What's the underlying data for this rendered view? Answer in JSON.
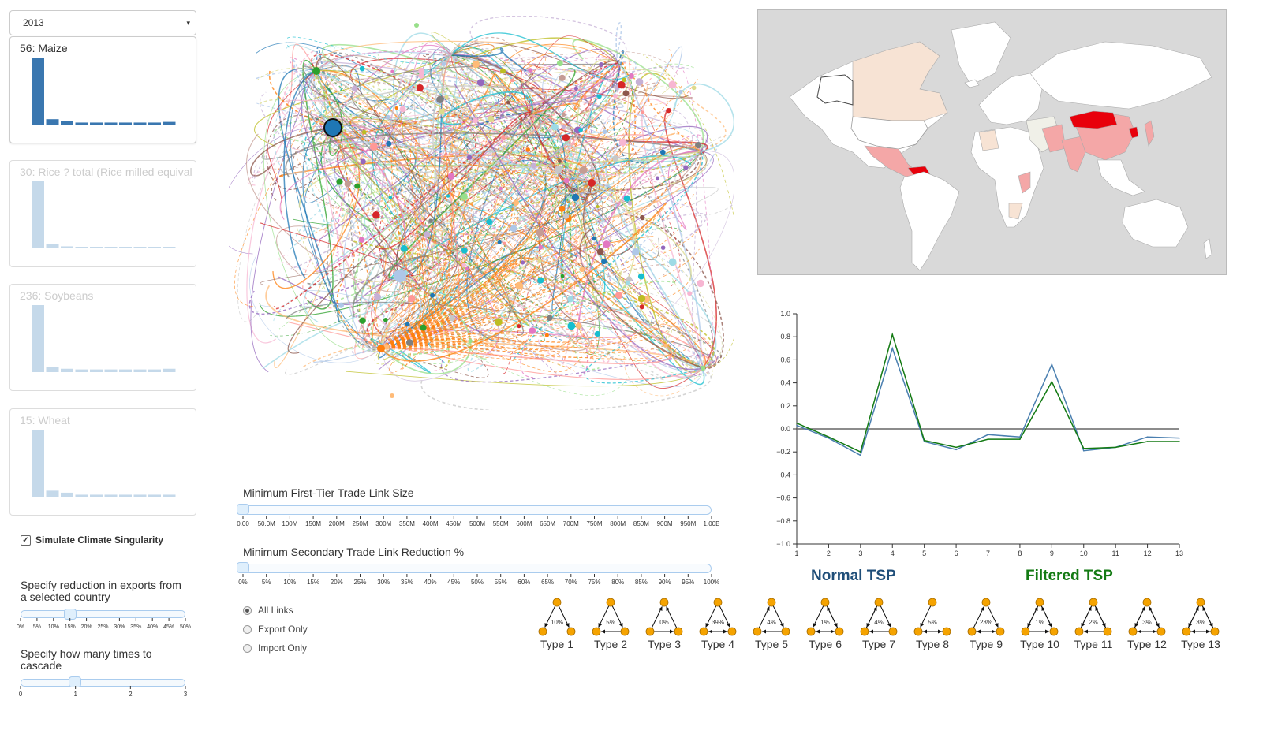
{
  "year_select": {
    "value": "2013",
    "caret": "▾"
  },
  "crops": [
    {
      "label": "56: Maize",
      "active": true,
      "bars": [
        1.0,
        0.08,
        0.05,
        0.03,
        0.03,
        0.03,
        0.03,
        0.03,
        0.03,
        0.04
      ]
    },
    {
      "label": "30: Rice ? total (Rice milled equival",
      "active": false,
      "bars": [
        1.0,
        0.06,
        0.03,
        0.02,
        0.02,
        0.02,
        0.02,
        0.02,
        0.02,
        0.02
      ]
    },
    {
      "label": "236: Soybeans",
      "active": false,
      "bars": [
        1.0,
        0.08,
        0.05,
        0.04,
        0.04,
        0.04,
        0.04,
        0.04,
        0.04,
        0.05
      ]
    },
    {
      "label": "15: Wheat",
      "active": false,
      "bars": [
        1.0,
        0.09,
        0.06,
        0.03,
        0.03,
        0.03,
        0.03,
        0.03,
        0.03,
        0.03
      ]
    }
  ],
  "simulate": {
    "label": "Simulate Climate Singularity",
    "checked": true,
    "check_glyph": "✓"
  },
  "reduction": {
    "label": "Specify reduction in exports from a selected country",
    "ticks": [
      "0%",
      "5%",
      "10%",
      "15%",
      "20%",
      "25%",
      "30%",
      "35%",
      "40%",
      "45%",
      "50%"
    ],
    "value_fraction": 0.3
  },
  "cascade": {
    "label": "Specify how many times to cascade",
    "ticks": [
      "0",
      "1",
      "2",
      "3"
    ],
    "value_fraction": 0.33
  },
  "first_tier": {
    "label": "Minimum First-Tier Trade Link Size",
    "ticks": [
      "0.00",
      "50.0M",
      "100M",
      "150M",
      "200M",
      "250M",
      "300M",
      "350M",
      "400M",
      "450M",
      "500M",
      "550M",
      "600M",
      "650M",
      "700M",
      "750M",
      "800M",
      "850M",
      "900M",
      "950M",
      "1.00B"
    ],
    "value_fraction": 0
  },
  "secondary": {
    "label": "Minimum Secondary Trade Link Reduction %",
    "ticks": [
      "0%",
      "5%",
      "10%",
      "15%",
      "20%",
      "25%",
      "30%",
      "35%",
      "40%",
      "45%",
      "50%",
      "55%",
      "60%",
      "65%",
      "70%",
      "75%",
      "80%",
      "85%",
      "90%",
      "95%",
      "100%"
    ],
    "value_fraction": 0
  },
  "link_filter": {
    "options": [
      "All Links",
      "Export Only",
      "Import Only"
    ],
    "selected": "All Links"
  },
  "colors": {
    "primary": "#3a77b0",
    "inactive": "#c5d9ea",
    "normal_tsp": "#4a7fb0",
    "filtered_tsp": "#137a13",
    "map_land": "#ffffff",
    "map_ocean": "#d9d9d9",
    "motif_node": "#f5a300"
  },
  "tsp": {
    "normal_title": "Normal TSP",
    "filtered_title": "Filtered TSP"
  },
  "chart_data": {
    "type": "line",
    "x": [
      1,
      2,
      3,
      4,
      5,
      6,
      7,
      8,
      9,
      10,
      11,
      12,
      13
    ],
    "series": [
      {
        "name": "Normal TSP",
        "values": [
          0.03,
          -0.08,
          -0.23,
          0.7,
          -0.11,
          -0.18,
          -0.05,
          -0.07,
          0.56,
          -0.19,
          -0.16,
          -0.07,
          -0.08
        ]
      },
      {
        "name": "Filtered TSP",
        "values": [
          0.05,
          -0.07,
          -0.2,
          0.82,
          -0.1,
          -0.16,
          -0.09,
          -0.09,
          0.41,
          -0.17,
          -0.16,
          -0.11,
          -0.11
        ]
      }
    ],
    "yticks": [
      "1.0",
      "0.8",
      "0.6",
      "0.4",
      "0.2",
      "0.0",
      "−0.2",
      "−0.4",
      "−0.6",
      "−0.8",
      "−1.0"
    ],
    "xticks": [
      "1",
      "2",
      "3",
      "4",
      "5",
      "6",
      "7",
      "8",
      "9",
      "10",
      "11",
      "12",
      "13"
    ],
    "ylim": [
      -1.0,
      1.0
    ],
    "xlim": [
      1,
      13
    ],
    "baseline": 0
  },
  "motifs": [
    {
      "label": "Type 1",
      "pct": "10%"
    },
    {
      "label": "Type 2",
      "pct": "5%"
    },
    {
      "label": "Type 3",
      "pct": "0%"
    },
    {
      "label": "Type 4",
      "pct": "39%"
    },
    {
      "label": "Type 5",
      "pct": "4%"
    },
    {
      "label": "Type 6",
      "pct": "1%"
    },
    {
      "label": "Type 7",
      "pct": "4%"
    },
    {
      "label": "Type 8",
      "pct": "5%"
    },
    {
      "label": "Type 9",
      "pct": "23%"
    },
    {
      "label": "Type 10",
      "pct": "1%"
    },
    {
      "label": "Type 11",
      "pct": "2%"
    },
    {
      "label": "Type 12",
      "pct": "3%"
    },
    {
      "label": "Type 13",
      "pct": "3%"
    }
  ]
}
